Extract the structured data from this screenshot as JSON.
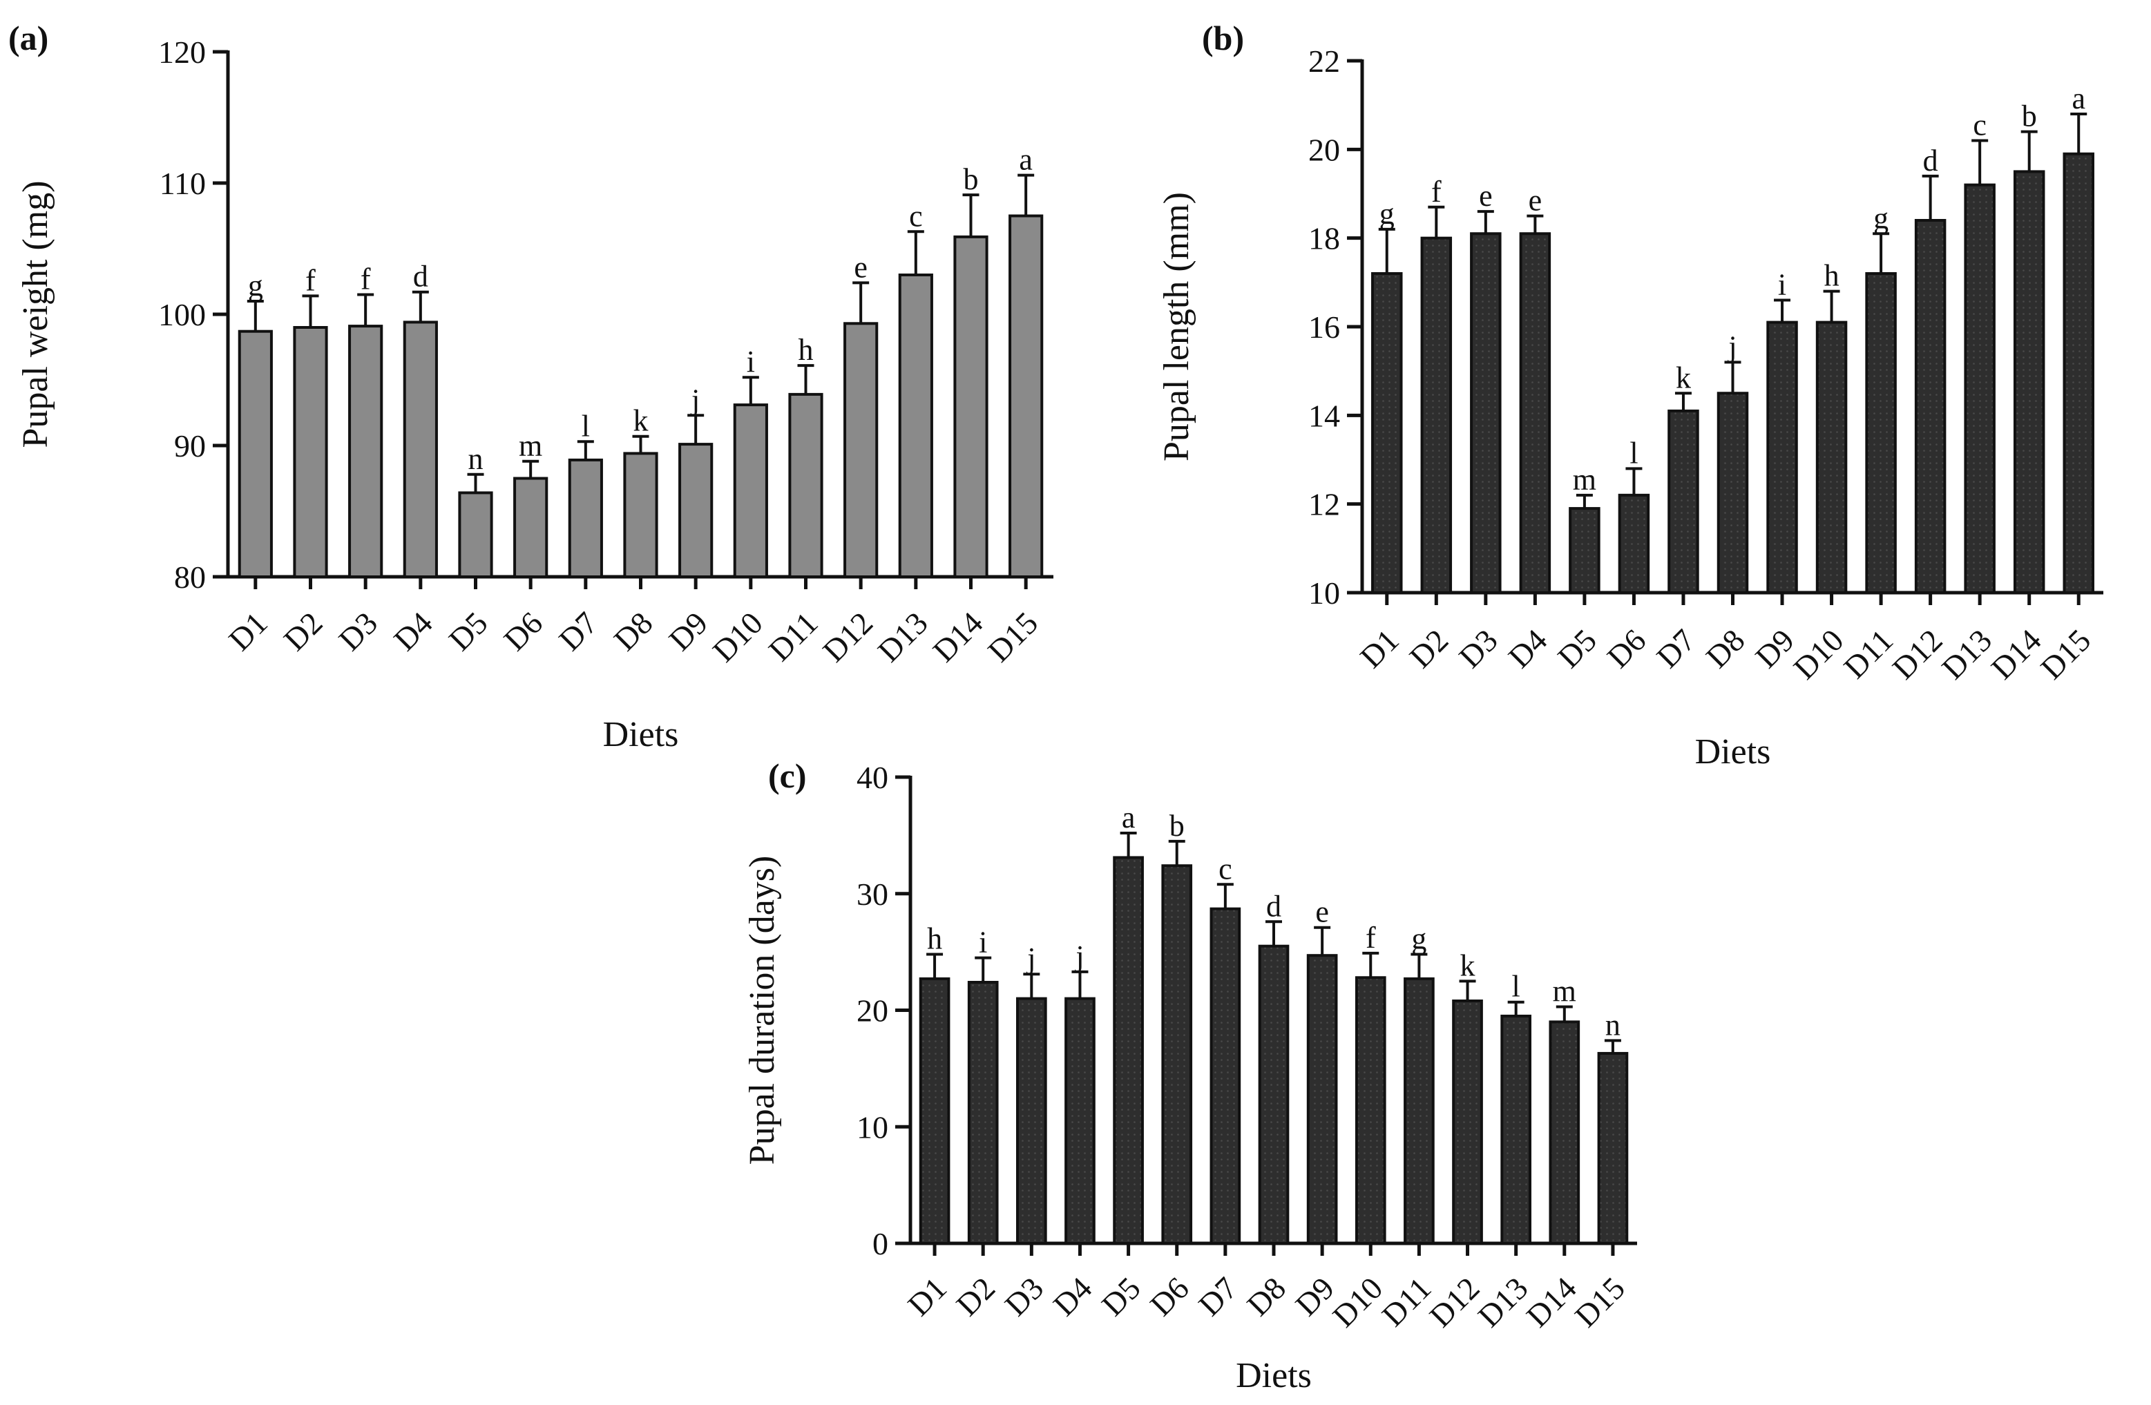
{
  "figure": {
    "background": "#ffffff",
    "axis_color": "#111111"
  },
  "chart_data": [
    {
      "panel_label": "(a)",
      "type": "bar",
      "xlabel": "Diets",
      "ylabel": "Pupal weight (mg)",
      "ylim": [
        80,
        120
      ],
      "yticks": [
        80,
        90,
        100,
        110,
        120
      ],
      "bar_color": "#8a8a8a",
      "categories": [
        "D1",
        "D2",
        "D3",
        "D4",
        "D5",
        "D6",
        "D7",
        "D8",
        "D9",
        "D10",
        "D11",
        "D12",
        "D13",
        "D14",
        "D15"
      ],
      "values": [
        98.7,
        99.0,
        99.1,
        99.4,
        86.4,
        87.5,
        88.9,
        89.4,
        90.1,
        93.1,
        93.9,
        99.3,
        103.0,
        105.9,
        107.5
      ],
      "errors": [
        2.3,
        2.4,
        2.4,
        2.3,
        1.4,
        1.3,
        1.4,
        1.3,
        2.2,
        2.1,
        2.2,
        3.1,
        3.3,
        3.2,
        3.1
      ],
      "significance": [
        "g",
        "f",
        "f",
        "d",
        "n",
        "m",
        "l",
        "k",
        "j",
        "i",
        "h",
        "e",
        "c",
        "b",
        "a"
      ]
    },
    {
      "panel_label": "(b)",
      "type": "bar",
      "xlabel": "Diets",
      "ylabel": "Pupal length (mm)",
      "ylim": [
        10,
        22
      ],
      "yticks": [
        10,
        12,
        14,
        16,
        18,
        20,
        22
      ],
      "bar_color": "#2e2e2e",
      "categories": [
        "D1",
        "D2",
        "D3",
        "D4",
        "D5",
        "D6",
        "D7",
        "D8",
        "D9",
        "D10",
        "D11",
        "D12",
        "D13",
        "D14",
        "D15"
      ],
      "values": [
        17.2,
        18.0,
        18.1,
        18.1,
        11.9,
        12.2,
        14.1,
        14.5,
        16.1,
        16.1,
        17.2,
        18.4,
        19.2,
        19.5,
        19.9
      ],
      "errors": [
        1.0,
        0.7,
        0.5,
        0.4,
        0.3,
        0.6,
        0.4,
        0.7,
        0.5,
        0.7,
        0.9,
        1.0,
        1.0,
        0.9,
        0.9
      ],
      "significance": [
        "g",
        "f",
        "e",
        "e",
        "m",
        "l",
        "k",
        "j",
        "i",
        "h",
        "g",
        "d",
        "c",
        "b",
        "a"
      ]
    },
    {
      "panel_label": "(c)",
      "type": "bar",
      "xlabel": "Diets",
      "ylabel": "Pupal duration (days)",
      "ylim": [
        0,
        40
      ],
      "yticks": [
        0,
        10,
        20,
        30,
        40
      ],
      "bar_color": "#2e2e2e",
      "categories": [
        "D1",
        "D2",
        "D3",
        "D4",
        "D5",
        "D6",
        "D7",
        "D8",
        "D9",
        "D10",
        "D11",
        "D12",
        "D13",
        "D14",
        "D15"
      ],
      "values": [
        22.7,
        22.4,
        21.0,
        21.0,
        33.1,
        32.4,
        28.7,
        25.5,
        24.7,
        22.8,
        22.7,
        20.8,
        19.5,
        19.0,
        16.3
      ],
      "errors": [
        2.1,
        2.1,
        2.1,
        2.3,
        2.1,
        2.1,
        2.1,
        2.1,
        2.4,
        2.1,
        2.1,
        1.7,
        1.2,
        1.3,
        1.1
      ],
      "significance": [
        "h",
        "i",
        "j",
        "j",
        "a",
        "b",
        "c",
        "d",
        "e",
        "f",
        "g",
        "k",
        "l",
        "m",
        "n"
      ]
    }
  ]
}
